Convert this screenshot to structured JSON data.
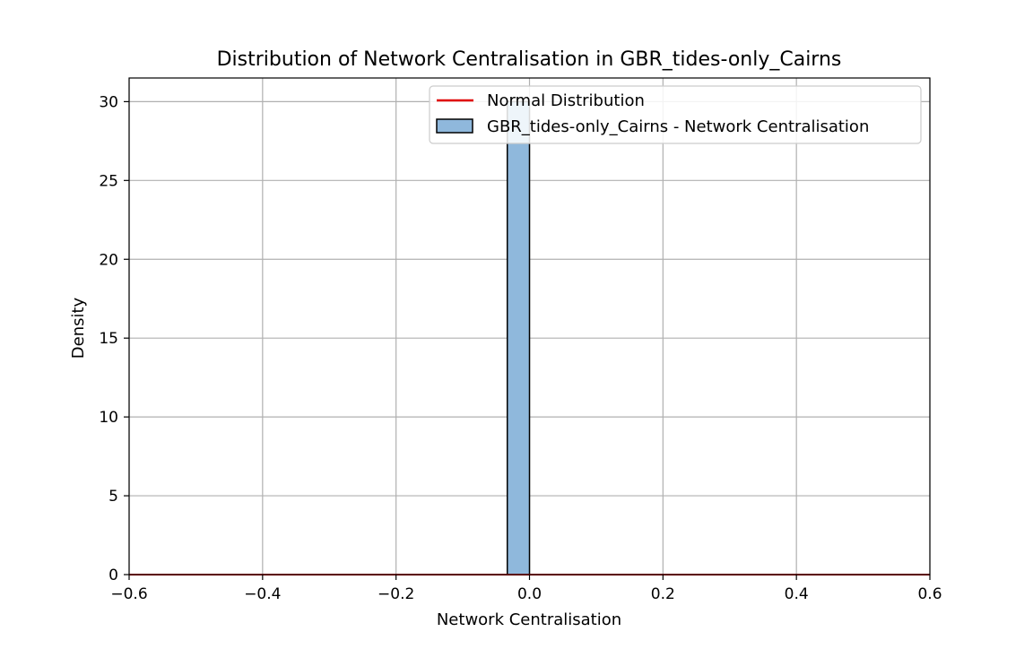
{
  "chart_data": {
    "type": "bar",
    "title": "Distribution of Network Centralisation in GBR_tides-only_Cairns",
    "xlabel": "Network Centralisation",
    "ylabel": "Density",
    "xlim": [
      -0.6,
      0.6
    ],
    "ylim": [
      0,
      31.5
    ],
    "xticks": [
      -0.6,
      -0.4,
      -0.2,
      0.0,
      0.2,
      0.4,
      0.6
    ],
    "xtick_labels": [
      "−0.6",
      "−0.4",
      "−0.2",
      "0.0",
      "0.2",
      "0.4",
      "0.6"
    ],
    "yticks": [
      0,
      5,
      10,
      15,
      20,
      25,
      30
    ],
    "ytick_labels": [
      "0",
      "5",
      "10",
      "15",
      "20",
      "25",
      "30"
    ],
    "grid": true,
    "legend_position": "top-right",
    "bins": [
      {
        "x0": -0.0333,
        "x1": 0.0,
        "density": 30
      }
    ],
    "histogram_series": {
      "name": "GBR_tides-only_Cairns - Network Centralisation",
      "color": "#8fb8dc",
      "edge_color": "#000000"
    },
    "normal_series": {
      "name": "Normal Distribution",
      "color": "#e00000",
      "x": [
        -0.6,
        0.6
      ],
      "y": [
        0,
        0
      ]
    }
  }
}
